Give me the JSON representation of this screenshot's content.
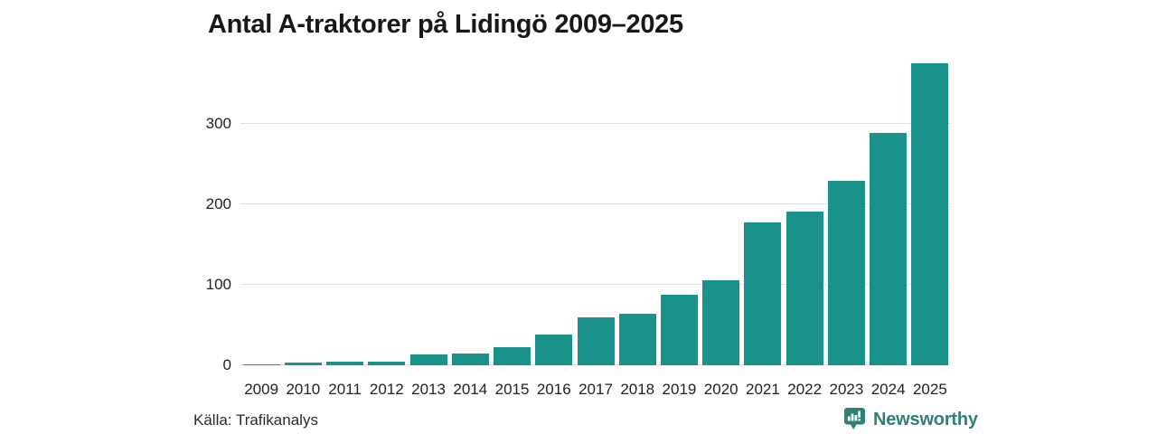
{
  "title": "Antal A-traktorer på Lidingö 2009–2025",
  "footer": {
    "source": "Källa: Trafikanalys"
  },
  "branding": {
    "label": "Newsworthy",
    "icon": "newsworthy-speech-bubble-barchart-icon",
    "color": "#2e8174"
  },
  "chart_data": {
    "type": "bar",
    "title": "Antal A-traktorer på Lidingö 2009–2025",
    "categories": [
      "2009",
      "2010",
      "2011",
      "2012",
      "2013",
      "2014",
      "2015",
      "2016",
      "2017",
      "2018",
      "2019",
      "2020",
      "2021",
      "2022",
      "2023",
      "2024",
      "2025"
    ],
    "values": [
      1,
      3,
      5,
      4,
      14,
      15,
      22,
      38,
      60,
      64,
      88,
      106,
      177,
      191,
      229,
      289,
      375
    ],
    "xlabel": "",
    "ylabel": "",
    "yticks": [
      0,
      100,
      200,
      300
    ],
    "ylim": [
      0,
      380
    ],
    "grid": true,
    "legend_position": "none",
    "source": "Källa: Trafikanalys",
    "colors": {
      "bar": "#1a928a",
      "gridline": "#e1e1e1",
      "axis_text": "#222222",
      "title_text": "#181818"
    }
  }
}
